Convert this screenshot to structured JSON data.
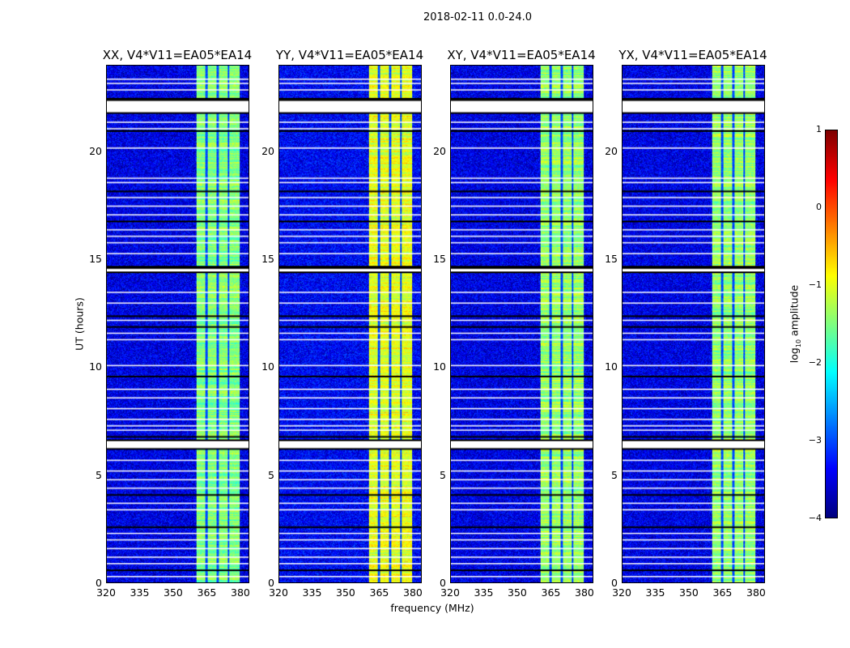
{
  "chart_data": {
    "type": "heatmap",
    "title": "2018-02-11 0.0-24.0",
    "xlabel": "frequency (MHz)",
    "ylabel": "UT (hours)",
    "xlim": [
      320,
      384
    ],
    "ylim": [
      0,
      24
    ],
    "xticks": [
      "320",
      "335",
      "350",
      "365",
      "380"
    ],
    "yticks": [
      "0",
      "5",
      "10",
      "15",
      "20"
    ],
    "panels": [
      {
        "title": "XX, V4*V11=EA05*EA14",
        "band_level": -1.5,
        "background_level": -3.5
      },
      {
        "title": "YY, V4*V11=EA05*EA14",
        "band_level": -1.0,
        "background_level": -3.4
      },
      {
        "title": "XY, V4*V11=EA05*EA14",
        "band_level": -1.4,
        "background_level": -3.5
      },
      {
        "title": "YX, V4*V11=EA05*EA14",
        "band_level": -1.4,
        "background_level": -3.5
      }
    ],
    "band_MHz": [
      360.3,
      379.7
    ],
    "band_gaps_MHz": [
      364.9,
      369.8,
      374.8
    ],
    "flagged_hours": [
      [
        21.8,
        22.4
      ],
      [
        6.2,
        6.6
      ],
      [
        14.4,
        14.6
      ]
    ],
    "white_lines_hours": [
      0.3,
      0.9,
      1.2,
      1.6,
      2.0,
      2.3,
      3.4,
      3.7,
      4.4,
      4.8,
      5.2,
      5.7,
      7.1,
      7.3,
      7.6,
      8.1,
      8.6,
      9.0,
      10.1,
      11.3,
      11.6,
      12.2,
      13.0,
      13.5,
      15.3,
      15.8,
      16.1,
      16.4,
      17.1,
      17.5,
      17.9,
      18.6,
      18.8,
      20.2,
      21.1,
      21.4,
      22.9,
      23.2,
      23.4
    ],
    "black_lines_hours": [
      0.6,
      2.6,
      4.1,
      6.8,
      9.6,
      11.9,
      12.4,
      14.7,
      16.8,
      18.2,
      21.0,
      22.5
    ],
    "colorbar": {
      "label": "log10 amplitude",
      "label_main": "log",
      "label_sub": "10",
      "label_rest": " amplitude",
      "range": [
        -4,
        1
      ],
      "ticks": [
        "1",
        "0",
        "−1",
        "−2",
        "−3",
        "−4"
      ],
      "colormap": "jet"
    }
  }
}
